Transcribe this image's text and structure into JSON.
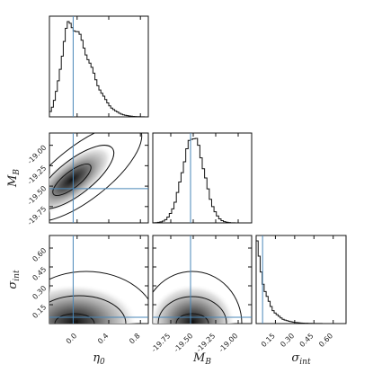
{
  "chart_data": {
    "type": "corner",
    "parameters": [
      {
        "symbol": "η",
        "subscript": "0",
        "truth": -0.05,
        "range": [
          -0.35,
          0.9
        ],
        "ticks": [
          "0.0",
          "0.4",
          "0.8"
        ],
        "tick_values": [
          0.0,
          0.4,
          0.8
        ]
      },
      {
        "symbol": "M",
        "subscript": "B",
        "truth": -19.53,
        "range": [
          -19.95,
          -18.85
        ],
        "ticks": [
          "-19.75",
          "-19.50",
          "-19.25",
          "-19.00"
        ],
        "tick_values": [
          -19.75,
          -19.5,
          -19.25,
          -19.0
        ]
      },
      {
        "symbol": "σ",
        "subscript": "int",
        "truth": 0.05,
        "range": [
          0.0,
          0.7
        ],
        "ticks": [
          "0.15",
          "0.30",
          "0.45",
          "0.60"
        ],
        "tick_values": [
          0.15,
          0.3,
          0.45,
          0.6
        ]
      }
    ],
    "marginals": [
      {
        "parameter": 0,
        "mode": -0.1,
        "notes": "right-skewed histogram peaking near -0.1, long tail to 0.8"
      },
      {
        "parameter": 1,
        "mode": -19.5,
        "notes": "approximately Gaussian centered near -19.5"
      },
      {
        "parameter": 2,
        "mode": 0.01,
        "notes": "half-Gaussian / decaying from 0, tail to ~0.4"
      }
    ],
    "joint": [
      {
        "x": 0,
        "y": 1,
        "center": [
          -0.05,
          -19.53
        ],
        "correlation": "positive"
      },
      {
        "x": 0,
        "y": 2,
        "center": [
          -0.05,
          0.0
        ],
        "correlation": "none"
      },
      {
        "x": 1,
        "y": 2,
        "center": [
          -19.5,
          0.0
        ],
        "correlation": "none"
      }
    ],
    "colors": {
      "truth_line": "#4a87b8",
      "hist": "#111111",
      "contour": "#111111"
    }
  }
}
